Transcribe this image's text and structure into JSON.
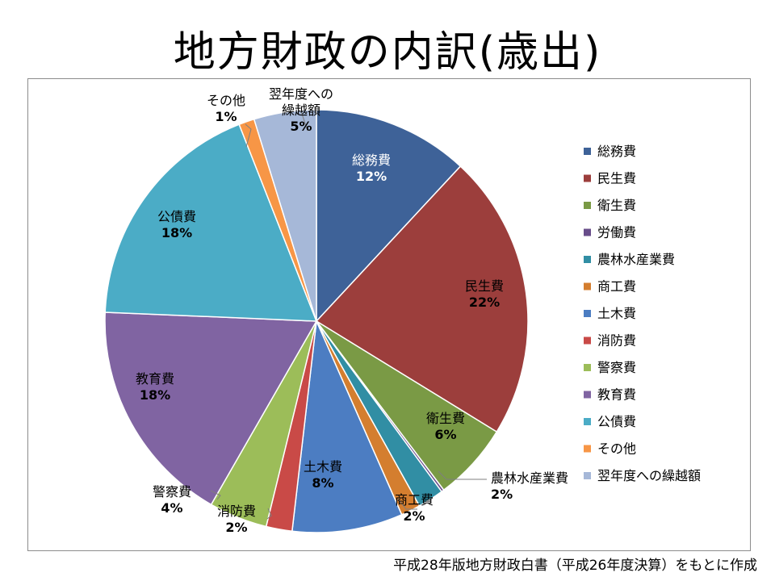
{
  "page": {
    "title": "地方財政の内訳(歳出)",
    "source": "平成28年版地方財政白書（平成26年度決算）をもとに作成"
  },
  "chart_data": {
    "type": "pie",
    "title": "地方財政の内訳(歳出)",
    "start_angle_deg": 0,
    "direction": "clockwise",
    "legend_position": "right",
    "slices": [
      {
        "label": "総務費",
        "value": 12,
        "display": "12%",
        "color": "#3E6298"
      },
      {
        "label": "民生費",
        "value": 22,
        "display": "22%",
        "color": "#9C3E3C"
      },
      {
        "label": "衛生費",
        "value": 6,
        "display": "6%",
        "color": "#7A9A45"
      },
      {
        "label": "労働費",
        "value": 0.2,
        "display": "",
        "color": "#684D8A"
      },
      {
        "label": "農林水産業費",
        "value": 2,
        "display": "2%",
        "color": "#318EA4"
      },
      {
        "label": "商工費",
        "value": 1.5,
        "display": "2%",
        "color": "#D47E2F"
      },
      {
        "label": "土木費",
        "value": 8.5,
        "display": "8%",
        "color": "#4C7DC2"
      },
      {
        "label": "消防費",
        "value": 2,
        "display": "2%",
        "color": "#C94A47"
      },
      {
        "label": "警察費",
        "value": 4.5,
        "display": "4%",
        "color": "#9CBD59"
      },
      {
        "label": "教育費",
        "value": 17.5,
        "display": "18%",
        "color": "#8064A2"
      },
      {
        "label": "公債費",
        "value": 18.5,
        "display": "18%",
        "color": "#4BACC6"
      },
      {
        "label": "その他",
        "value": 1.2,
        "display": "1%",
        "color": "#F79646"
      },
      {
        "label": "翌年度への繰越額",
        "value": 4.8,
        "display": "5%",
        "color": "#A6B8D8"
      }
    ],
    "data_labels": [
      {
        "lines": [
          "総務費",
          "12%"
        ]
      },
      {
        "lines": [
          "民生費",
          "22%"
        ]
      },
      {
        "lines": [
          "衛生費",
          "6%"
        ]
      },
      {
        "lines": [
          "農林水産業費",
          "2%"
        ]
      },
      {
        "lines": [
          "商工費",
          "2%"
        ]
      },
      {
        "lines": [
          "土木費",
          "8%"
        ]
      },
      {
        "lines": [
          "消防費",
          "2%"
        ]
      },
      {
        "lines": [
          "警察費",
          "4%"
        ]
      },
      {
        "lines": [
          "教育費",
          "18%"
        ]
      },
      {
        "lines": [
          "公債費",
          "18%"
        ]
      },
      {
        "lines": [
          "その他",
          "1%"
        ]
      },
      {
        "lines": [
          "翌年度への",
          "繰越額",
          "5%"
        ]
      }
    ]
  }
}
